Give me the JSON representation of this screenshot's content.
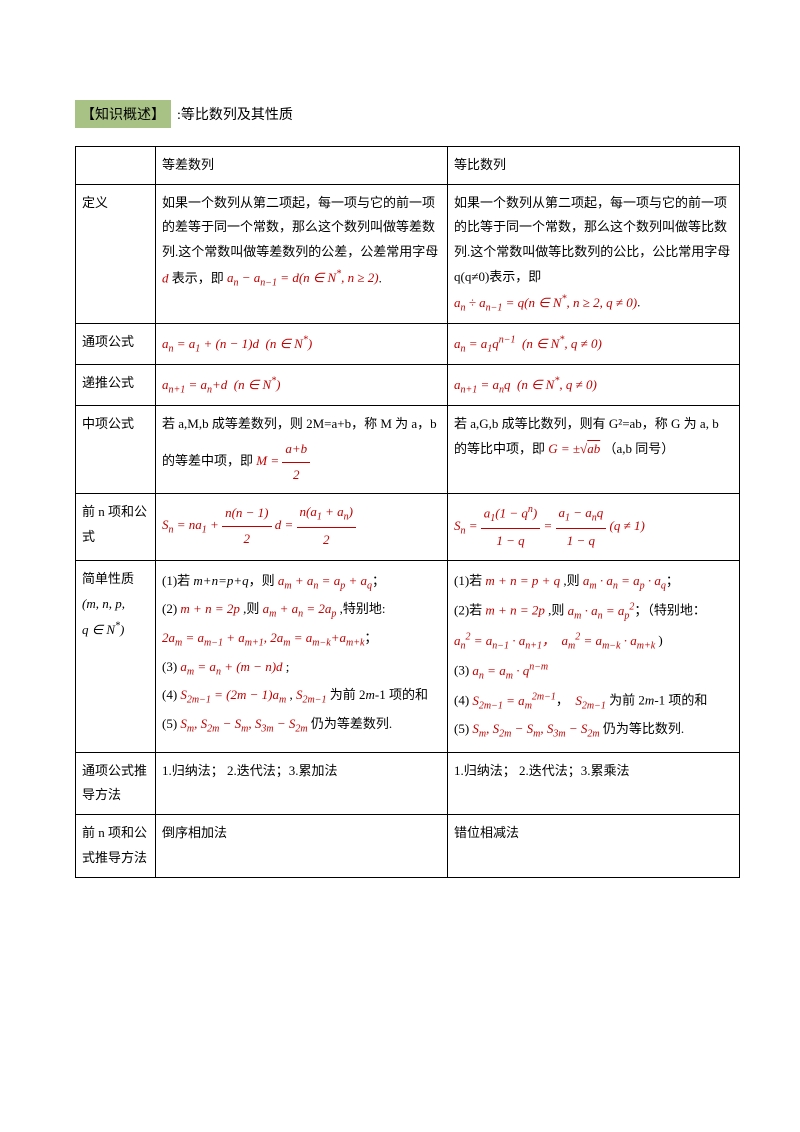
{
  "title": {
    "tag": "【知识概述】",
    "rest": ":等比数列及其性质"
  },
  "headers": {
    "col1": "",
    "col2": "等差数列",
    "col3": "等比数列"
  },
  "rows": {
    "r1": {
      "label": "定义",
      "col2_text1": "如果一个数列从第二项起，每一项与它的前一项的差等于同一个常数，那么这个数列叫做等差数列.这个常数叫做等差数列的公差，公差常用字母",
      "col2_formula_1": "d 表示，即 aₙ − aₙ₋₁ = d (n ∈ N*, n ≥ 2).",
      "col3_text1": "如果一个数列从第二项起，每一项与它的前一项的比等于同一个常数，那么这个数列叫做等比数列.这个常数叫做等比数列的公比，公比常用字母 q(q≠0)表示，即",
      "col3_formula_1": "aₙ ÷ aₙ₋₁ = q (n ∈ N*, n ≥ 2, q ≠ 0)."
    },
    "r2": {
      "label": "通项公式",
      "col2": "aₙ = a₁ + (n − 1)d  (n ∈ N*)",
      "col3": "aₙ = a₁qⁿ⁻¹  (n ∈ N*, q ≠ 0)"
    },
    "r3": {
      "label": "递推公式",
      "col2": "aₙ₊₁ = aₙ + d  (n ∈ N*)",
      "col3": "aₙ₊₁ = aₙq  (n ∈ N*, q ≠ 0)"
    },
    "r4": {
      "label": "中项公式",
      "col2_text": "若 a,M,b 成等差数列，则 2M=a+b，称 M 为 a，b",
      "col2_text2": "的等差中项，即 ",
      "col3_text": "若 a,G,b 成等比数列，则有 G²=ab，称 G 为 a, b 的等比中项，即 ",
      "col3_text2": "（a,b 同号）"
    },
    "r5": {
      "label": "前 n 项和公式"
    },
    "r6": {
      "label": "简单性质",
      "label2": "(m, n, p,",
      "label3": "q ∈ N*)",
      "col2_1": "(1)若 m+n=p+q，则 aₘ + aₙ = aₚ + aq；",
      "col2_2": "(2) m + n = 2p ,则 aₘ + aₙ = 2aₚ ,特别地:",
      "col2_3": "2aₘ = aₘ₋₁ + aₘ₊₁, 2aₘ = aₘ₋ₖ + aₘ₊ₖ；",
      "col2_4": "(3) aₘ = aₙ + (m − n)d ;",
      "col2_5a": "(4) S₂ₘ₋₁ = (2m − 1)aₘ , S₂ₘ₋₁ 为前 2m-1 项的和",
      "col2_6": "(5) Sₘ, S₂ₘ − Sₘ, S₃ₘ − S₂ₘ 仍为等差数列.",
      "col3_1": "(1)若 m + n = p + q ,则 aₘ · aₙ = aₚ · aq；",
      "col3_2": "(2)若 m + n = 2p ,则 aₘ · aₙ = aₚ²；（特别地：",
      "col3_3": "aₙ² = aₙ₋₁ · aₙ₊₁， aₘ² = aₘ₋ₖ · aₘ₊ₖ )",
      "col3_4": "(3) aₙ = aₘ · qⁿ⁻ᵐ",
      "col3_5": "(4) S₂ₘ₋₁ = aₘ²ᵐ⁻¹， S₂ₘ₋₁ 为前 2m-1 项的和",
      "col3_6": "(5) Sₘ, S₂ₘ − Sₘ, S₃ₘ − S₂ₘ 仍为等比数列."
    },
    "r7": {
      "label": "通项公式推导方法",
      "col2": "1.归纳法；  2.迭代法；3.累加法",
      "col3": "1.归纳法；  2.迭代法；3.累乘法"
    },
    "r8": {
      "label": "前 n 项和公式推导方法",
      "col2": "倒序相加法",
      "col3": "错位相减法"
    }
  },
  "colors": {
    "tag_bg": "#a8c285",
    "math_color": "#c00000"
  }
}
